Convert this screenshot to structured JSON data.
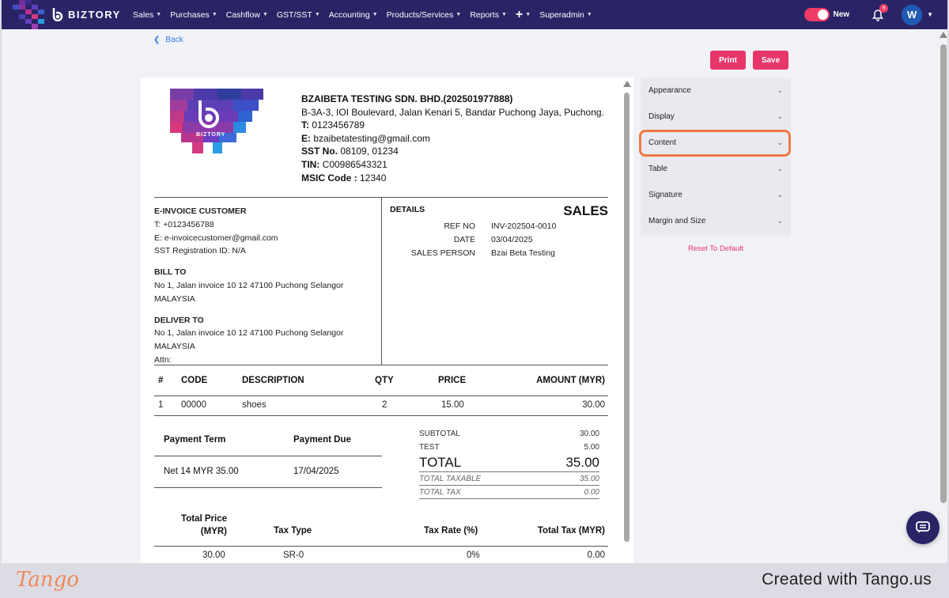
{
  "app": {
    "brand_name": "BIZTORY",
    "nav": [
      {
        "label": "Sales"
      },
      {
        "label": "Purchases"
      },
      {
        "label": "Cashflow"
      },
      {
        "label": "GST/SST"
      },
      {
        "label": "Accounting"
      },
      {
        "label": "Products/Services"
      },
      {
        "label": "Reports"
      }
    ],
    "nav_admin": "Superadmin",
    "toggle_label": "New",
    "notification_count": "9",
    "avatar_initial": "W"
  },
  "page": {
    "back_label": "Back",
    "print_label": "Print",
    "save_label": "Save"
  },
  "company": {
    "name": "BZAIBETA TESTING SDN. BHD.(202501977888)",
    "address": "B-3A-3, IOI Boulevard, Jalan Kenari 5, Bandar Puchong Jaya, Puchong.",
    "phone_label": "T:",
    "phone": " 0123456789",
    "email_label": "E:",
    "email": " bzaibetatesting@gmail.com",
    "sst_label": "SST No.",
    "sst": " 08109, 01234",
    "tin_label": "TIN:",
    "tin": " C00986543321",
    "msic_label": "MSIC Code :",
    "msic": " 12340"
  },
  "customer": {
    "heading": "E-INVOICE CUSTOMER",
    "phone": "T: +0123456788",
    "email": "E: e-invoicecustomer@gmail.com",
    "sst": "SST Registration ID: N/A",
    "bill_to_heading": "BILL TO",
    "bill_to_line1": "No 1, Jalan invoice 10 12 47100 Puchong Selangor",
    "bill_to_line2": "MALAYSIA",
    "deliver_to_heading": "DELIVER TO",
    "deliver_to_line1": "No 1, Jalan invoice 10 12 47100 Puchong Selangor",
    "deliver_to_line2": "MALAYSIA",
    "attn": "Attn:"
  },
  "details": {
    "heading": "DETAILS",
    "doc_type": "SALES",
    "rows": [
      {
        "k": "REF NO",
        "v": "INV-202504-0010"
      },
      {
        "k": "DATE",
        "v": "03/04/2025"
      },
      {
        "k": "SALES PERSON",
        "v": "Bzai Beta Testing"
      }
    ]
  },
  "items": {
    "headers": {
      "num": "#",
      "code": "CODE",
      "desc": "DESCRIPTION",
      "qty": "QTY",
      "price": "PRICE",
      "amount": "AMOUNT (MYR)"
    },
    "rows": [
      {
        "num": "1",
        "code": "00000",
        "desc": "shoes",
        "qty": "2",
        "price": "15.00",
        "amount": "30.00"
      }
    ]
  },
  "payment": {
    "term_header": "Payment Term",
    "due_header": "Payment Due",
    "term": "Net 14 MYR 35.00",
    "due": "17/04/2025"
  },
  "totals": {
    "subtotal_label": "SUBTOTAL",
    "subtotal": "30.00",
    "test_label": "TEST",
    "test": "5.00",
    "total_label": "TOTAL",
    "total": "35.00",
    "taxable_label": "TOTAL TAXABLE",
    "taxable": "35.00",
    "tax_label": "TOTAL TAX",
    "tax": "0.00"
  },
  "tax_summary": {
    "h_price_1": "Total Price",
    "h_price_2": "(MYR)",
    "h_type": "Tax Type",
    "h_rate": "Tax Rate (%)",
    "h_tax": "Total Tax (MYR)",
    "price": "30.00",
    "type": "SR-0",
    "rate": "0%",
    "tax": "0.00"
  },
  "panel": {
    "items": [
      {
        "label": "Appearance"
      },
      {
        "label": "Display"
      },
      {
        "label": "Content"
      },
      {
        "label": "Table"
      },
      {
        "label": "Signature"
      },
      {
        "label": "Margin and Size"
      }
    ],
    "reset_label": "Reset To Default"
  },
  "footer": {
    "tango": "Tango",
    "created": "Created with Tango.us"
  },
  "colors": {
    "nav_bg": "#2a2466",
    "accent": "#e8356a",
    "link": "#2f7de1",
    "highlight": "#f07a45"
  }
}
